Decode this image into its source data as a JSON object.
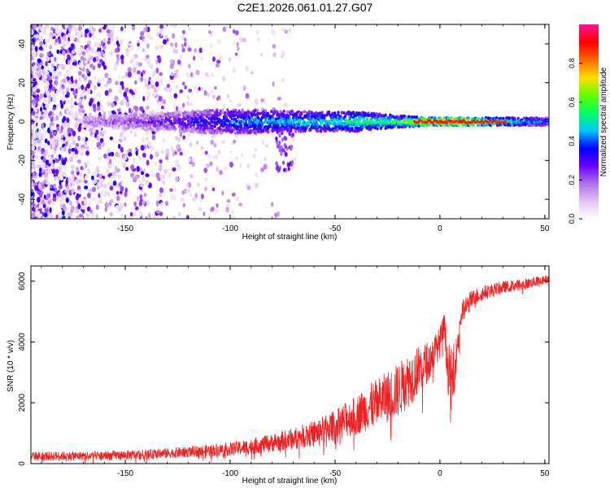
{
  "title": "C2E1.2026.061.01.27.G07",
  "chart_data": [
    {
      "type": "heatmap",
      "name": "spectrogram",
      "xlabel": "Height of straight line (km)",
      "ylabel": "Frequency (Hz)",
      "xlim": [
        -195,
        52
      ],
      "ylim": [
        -50,
        50
      ],
      "xticks": [
        -150,
        -100,
        -50,
        0,
        50
      ],
      "yticks": [
        -40,
        -20,
        0,
        20,
        40
      ],
      "colorbar": {
        "label": "Normalized spectral amplitude",
        "range": [
          0,
          1
        ],
        "ticks": [
          0.0,
          0.2,
          0.4,
          0.6,
          0.8
        ],
        "colormap": [
          "#ffffff",
          "#e2c4f0",
          "#b070e8",
          "#6a00ff",
          "#0000ff",
          "#00c8ff",
          "#00ff64",
          "#64ff00",
          "#ffe000",
          "#ff6600",
          "#ff0000",
          "#ff1493"
        ]
      },
      "main_band": {
        "center_hz": 0,
        "description_points": [
          {
            "x": -175,
            "halfwidth_hz": 2,
            "amplitude": 0.15
          },
          {
            "x": -140,
            "halfwidth_hz": 4,
            "amplitude": 0.25
          },
          {
            "x": -110,
            "halfwidth_hz": 6,
            "amplitude": 0.35
          },
          {
            "x": -90,
            "halfwidth_hz": 6,
            "amplitude": 0.45
          },
          {
            "x": -60,
            "halfwidth_hz": 5,
            "amplitude": 0.5
          },
          {
            "x": -40,
            "halfwidth_hz": 5,
            "amplitude": 0.55
          },
          {
            "x": -20,
            "halfwidth_hz": 3,
            "amplitude": 0.6
          },
          {
            "x": -5,
            "halfwidth_hz": 2,
            "amplitude": 0.9
          },
          {
            "x": 10,
            "halfwidth_hz": 2,
            "amplitude": 0.95
          },
          {
            "x": 30,
            "halfwidth_hz": 2,
            "amplitude": 0.6
          },
          {
            "x": 52,
            "halfwidth_hz": 2,
            "amplitude": 0.4
          }
        ]
      }
    },
    {
      "type": "line",
      "name": "snr",
      "xlabel": "Height of straight line (km)",
      "ylabel": "SNR (10 * v/v)",
      "xlim": [
        -195,
        52
      ],
      "ylim": [
        0,
        6500
      ],
      "xticks": [
        -150,
        -100,
        -50,
        0,
        50
      ],
      "yticks": [
        0,
        2000,
        4000,
        6000
      ],
      "series": [
        {
          "name": "SNR",
          "color": "#ee2222",
          "x": [
            -195,
            -180,
            -160,
            -140,
            -120,
            -100,
            -90,
            -80,
            -70,
            -60,
            -50,
            -40,
            -30,
            -20,
            -15,
            -10,
            -5,
            0,
            2,
            5,
            8,
            10,
            15,
            20,
            30,
            40,
            50,
            52
          ],
          "y": [
            250,
            250,
            260,
            300,
            380,
            480,
            560,
            680,
            820,
            1000,
            1250,
            1600,
            2000,
            2400,
            2750,
            3100,
            3400,
            4000,
            4500,
            2500,
            3700,
            4900,
            5400,
            5600,
            5800,
            5900,
            6050,
            6100
          ],
          "noise": [
            150,
            150,
            150,
            160,
            180,
            220,
            260,
            300,
            360,
            420,
            520,
            650,
            800,
            900,
            900,
            800,
            650,
            500,
            500,
            1200,
            500,
            450,
            300,
            250,
            200,
            180,
            150,
            150
          ]
        }
      ]
    }
  ]
}
